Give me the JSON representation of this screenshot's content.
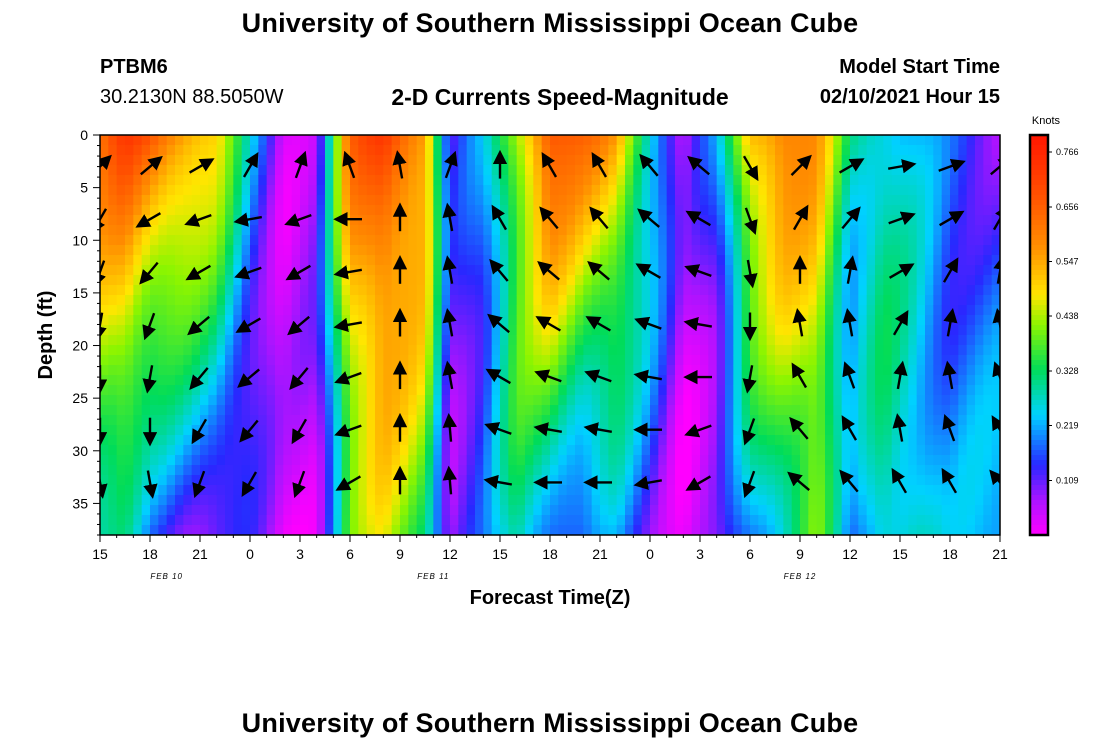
{
  "header": {
    "title": "University of Southern Mississippi Ocean Cube",
    "station_id": "PTBM6",
    "station_coords": "30.2130N 88.5050W",
    "subtitle": "2-D Currents Speed-Magnitude",
    "model_label": "Model Start Time",
    "model_time": "02/10/2021 Hour 15"
  },
  "footer": {
    "title": "University of Southern Mississippi Ocean Cube"
  },
  "chart_data": {
    "type": "heatmap",
    "title": "2-D Currents Speed-Magnitude",
    "xlabel": "Forecast Time(Z)",
    "ylabel": "Depth (ft)",
    "x_tick_labels": [
      "15",
      "18",
      "21",
      "0",
      "3",
      "6",
      "9",
      "12",
      "15",
      "18",
      "21",
      "0",
      "3",
      "6",
      "9",
      "12",
      "15",
      "18",
      "21"
    ],
    "date_labels": [
      {
        "text": "FEB 10",
        "hour_index": 4
      },
      {
        "text": "FEB 11",
        "hour_index": 20
      },
      {
        "text": "FEB 12",
        "hour_index": 42
      }
    ],
    "forecast_hours": 54,
    "y_ticks": [
      0,
      5,
      10,
      15,
      20,
      25,
      30,
      35
    ],
    "ylim": [
      38,
      0
    ],
    "colorbar": {
      "title": "Knots",
      "tick_labels": [
        "0.766",
        "0.656",
        "0.547",
        "0.438",
        "0.328",
        "0.219",
        "0.109"
      ],
      "tick_values": [
        0.766,
        0.656,
        0.547,
        0.438,
        0.328,
        0.219,
        0.109
      ],
      "range": [
        0.0,
        0.8
      ]
    },
    "speed_bands": [
      {
        "hour": 0,
        "surface": 0.62,
        "bottom": 0.3
      },
      {
        "hour": 1.5,
        "surface": 0.7,
        "bottom": 0.28
      },
      {
        "hour": 3,
        "surface": 0.66,
        "bottom": 0.15
      },
      {
        "hour": 5,
        "surface": 0.6,
        "bottom": 0.12
      },
      {
        "hour": 7,
        "surface": 0.5,
        "bottom": 0.12
      },
      {
        "hour": 9,
        "surface": 0.22,
        "bottom": 0.1
      },
      {
        "hour": 11,
        "surface": 0.05,
        "bottom": 0.02
      },
      {
        "hour": 13,
        "surface": 0.08,
        "bottom": 0.05
      },
      {
        "hour": 15,
        "surface": 0.62,
        "bottom": 0.38
      },
      {
        "hour": 17,
        "surface": 0.72,
        "bottom": 0.45
      },
      {
        "hour": 19.5,
        "surface": 0.6,
        "bottom": 0.36
      },
      {
        "hour": 21,
        "surface": 0.1,
        "bottom": 0.08
      },
      {
        "hour": 23,
        "surface": 0.2,
        "bottom": 0.14
      },
      {
        "hour": 25,
        "surface": 0.45,
        "bottom": 0.3
      },
      {
        "hour": 27,
        "surface": 0.7,
        "bottom": 0.22
      },
      {
        "hour": 29,
        "surface": 0.62,
        "bottom": 0.15
      },
      {
        "hour": 31,
        "surface": 0.55,
        "bottom": 0.2
      },
      {
        "hour": 33,
        "surface": 0.3,
        "bottom": 0.12
      },
      {
        "hour": 35,
        "surface": 0.05,
        "bottom": 0.02
      },
      {
        "hour": 37,
        "surface": 0.18,
        "bottom": 0.05
      },
      {
        "hour": 39,
        "surface": 0.55,
        "bottom": 0.2
      },
      {
        "hour": 41,
        "surface": 0.62,
        "bottom": 0.3
      },
      {
        "hour": 43,
        "surface": 0.55,
        "bottom": 0.4
      },
      {
        "hour": 45,
        "surface": 0.3,
        "bottom": 0.15
      },
      {
        "hour": 47,
        "surface": 0.3,
        "bottom": 0.3
      },
      {
        "hour": 49,
        "surface": 0.22,
        "bottom": 0.28
      },
      {
        "hour": 51,
        "surface": 0.15,
        "bottom": 0.2
      },
      {
        "hour": 54,
        "surface": 0.1,
        "bottom": 0.25
      }
    ],
    "vector_hours": [
      0,
      3,
      6,
      9,
      12,
      15,
      18,
      21,
      24,
      27,
      30,
      33,
      36,
      39,
      42,
      45,
      48,
      51,
      54
    ],
    "vector_depths": [
      3,
      8,
      13,
      18,
      23,
      28,
      33
    ],
    "vector_directions_deg": [
      [
        -45,
        120,
        110,
        100,
        90,
        90,
        80
      ],
      [
        -40,
        150,
        130,
        110,
        100,
        90,
        80
      ],
      [
        -30,
        160,
        150,
        140,
        130,
        120,
        110
      ],
      [
        -60,
        170,
        160,
        150,
        140,
        130,
        120
      ],
      [
        -70,
        160,
        150,
        140,
        130,
        120,
        110
      ],
      [
        -110,
        180,
        170,
        170,
        160,
        160,
        150
      ],
      [
        -100,
        -90,
        -90,
        -90,
        -90,
        -90,
        -90
      ],
      [
        -70,
        -100,
        -100,
        -100,
        -100,
        -95,
        -95
      ],
      [
        -90,
        -120,
        -130,
        -140,
        -150,
        -160,
        -170
      ],
      [
        -120,
        -130,
        -140,
        -150,
        -160,
        -170,
        -180
      ],
      [
        -120,
        -130,
        -140,
        -150,
        -160,
        -170,
        -180
      ],
      [
        -130,
        -140,
        -150,
        -160,
        -170,
        -180,
        -190
      ],
      [
        -140,
        -150,
        -160,
        -170,
        -180,
        160,
        150
      ],
      [
        60,
        70,
        80,
        90,
        100,
        110,
        110
      ],
      [
        -45,
        -60,
        -90,
        -100,
        -120,
        -130,
        -140
      ],
      [
        -30,
        -50,
        -80,
        -100,
        -110,
        -120,
        -130
      ],
      [
        -10,
        -20,
        -30,
        -60,
        -80,
        -100,
        -120
      ],
      [
        -20,
        -30,
        -60,
        -80,
        -100,
        -110,
        -120
      ],
      [
        -40,
        -60,
        -80,
        -100,
        -110,
        -120,
        -130
      ]
    ]
  }
}
